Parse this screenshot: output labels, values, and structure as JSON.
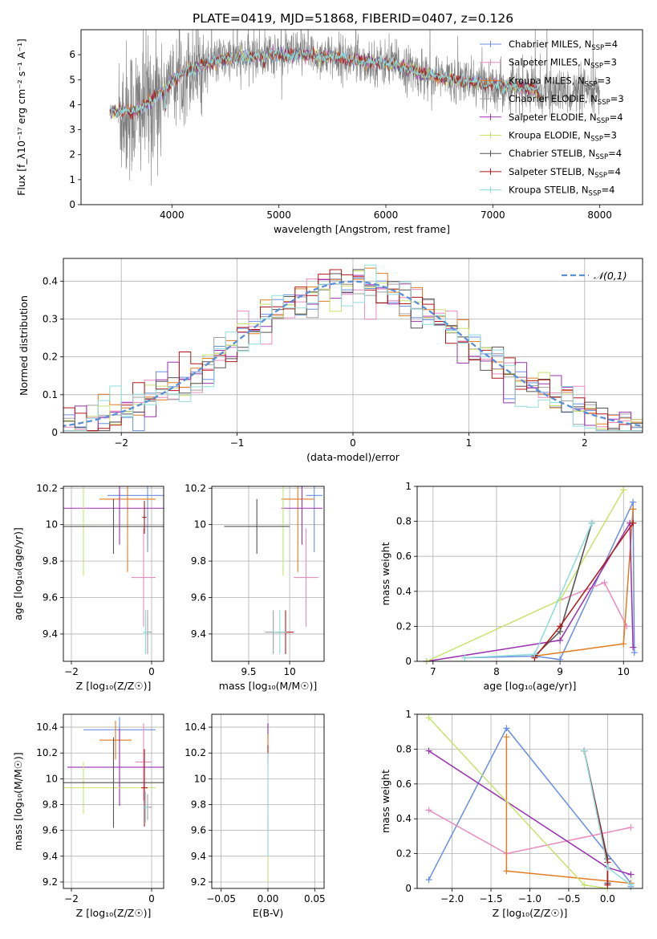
{
  "figure_title": "PLATE=0419, MJD=51868, FIBERID=0407, z=0.126",
  "models": [
    {
      "name": "Chabrier MILES",
      "nssp": "4",
      "color": "#6a8fe0"
    },
    {
      "name": "Salpeter MILES",
      "nssp": "3",
      "color": "#e88bbf"
    },
    {
      "name": "Kroupa MILES",
      "nssp": "3",
      "color": "#e07c22"
    },
    {
      "name": "Chabrier ELODIE",
      "nssp": "3",
      "color": "#a0a0a0"
    },
    {
      "name": "Salpeter ELODIE",
      "nssp": "4",
      "color": "#9b30b0"
    },
    {
      "name": "Kroupa ELODIE",
      "nssp": "3",
      "color": "#c7e36a"
    },
    {
      "name": "Chabrier STELIB",
      "nssp": "4",
      "color": "#555555"
    },
    {
      "name": "Salpeter STELIB",
      "nssp": "4",
      "color": "#b01818"
    },
    {
      "name": "Kroupa STELIB",
      "nssp": "4",
      "color": "#8fdcdc"
    }
  ],
  "chart_data": [
    {
      "id": "spectrum",
      "type": "line",
      "xlabel": "wavelength [Angstrom, rest frame]",
      "ylabel": "Flux [f_λ10⁻¹⁷ erg cm⁻² s⁻¹ A⁻¹]",
      "xlim": [
        3150,
        8400
      ],
      "ylim": [
        0,
        7
      ],
      "xticks": [
        4000,
        5000,
        6000,
        7000,
        8000
      ],
      "yticks": [
        0,
        1,
        2,
        3,
        4,
        5,
        6
      ],
      "legend": "top-right",
      "grid": false,
      "continuum": {
        "x": [
          3400,
          3500,
          3700,
          3900,
          4100,
          4300,
          4500,
          4700,
          4900,
          5100,
          5300,
          5500,
          5700,
          5900,
          6100,
          6300,
          6500,
          6700,
          6900,
          7100,
          7300,
          7450
        ],
        "y": [
          3.8,
          3.7,
          3.8,
          4.5,
          5.3,
          5.6,
          5.85,
          5.9,
          6.0,
          6.0,
          6.0,
          5.9,
          5.8,
          5.7,
          5.6,
          5.3,
          5.1,
          4.95,
          4.85,
          4.75,
          4.7,
          4.5
        ]
      },
      "data_range": [
        3500,
        8000
      ]
    },
    {
      "id": "residuals",
      "type": "bar",
      "xlabel": "(data-model)/error",
      "ylabel": "Normed distribution",
      "xlim": [
        -2.5,
        2.5
      ],
      "ylim": [
        0,
        0.46
      ],
      "xticks": [
        -2,
        -1,
        0,
        1,
        2
      ],
      "yticks": [
        0.0,
        0.1,
        0.2,
        0.3,
        0.4
      ],
      "grid": true,
      "legend": "top-right",
      "reference_curve": {
        "label": "𝒩(0,1)",
        "color": "#5b8fd6"
      },
      "bin_width": 0.1
    },
    {
      "id": "age_vs_Z",
      "type": "scatter",
      "xlabel": "Z [log₁₀(Z/Z☉)]",
      "ylabel": "age  [log₁₀(age/yr)]",
      "xlim": [
        -2.2,
        0.3
      ],
      "ylim": [
        9.25,
        10.21
      ],
      "xticks": [
        -2,
        0
      ],
      "yticks": [
        9.4,
        9.6,
        9.8,
        10.0,
        10.2
      ],
      "grid": true,
      "errorbars": [
        {
          "m": 0,
          "x": -0.1,
          "xe": 1.0,
          "y": 10.16,
          "ye": 0.31
        },
        {
          "m": 1,
          "x": -0.2,
          "xe": 0.3,
          "y": 9.71,
          "ye": 0.27
        },
        {
          "m": 2,
          "x": -0.6,
          "xe": 0.7,
          "y": 10.14,
          "ye": 0.4
        },
        {
          "m": 3,
          "x": -0.1,
          "xe": 0.1,
          "y": 9.41,
          "ye": 0.12
        },
        {
          "m": 4,
          "x": -0.8,
          "xe": 1.4,
          "y": 10.09,
          "ye": 0.2
        },
        {
          "m": 5,
          "x": -1.7,
          "xe": 0.4,
          "y": 9.99,
          "ye": 0.27
        },
        {
          "m": 6,
          "x": -0.95,
          "xe": 2.0,
          "y": 9.99,
          "ye": 0.15
        },
        {
          "m": 7,
          "x": -0.18,
          "xe": 0.05,
          "y": 10.04,
          "ye": 0.09
        },
        {
          "m": 8,
          "x": -0.15,
          "xe": 0.06,
          "y": 9.41,
          "ye": 0.12
        }
      ]
    },
    {
      "id": "age_vs_mass",
      "type": "scatter",
      "xlabel": "mass [log₁₀(M/M☉)]",
      "ylabel": "",
      "xlim": [
        9.05,
        10.42
      ],
      "ylim": [
        9.25,
        10.21
      ],
      "xticks": [
        9.5,
        10.0
      ],
      "yticks": [
        9.4,
        9.6,
        9.8,
        10.0,
        10.2
      ],
      "grid": true,
      "errorbars": [
        {
          "m": 0,
          "x": 10.3,
          "xe": 0.1,
          "y": 10.16,
          "ye": 0.31
        },
        {
          "m": 1,
          "x": 10.2,
          "xe": 0.15,
          "y": 9.71,
          "ye": 0.27
        },
        {
          "m": 2,
          "x": 10.1,
          "xe": 0.2,
          "y": 10.14,
          "ye": 0.4
        },
        {
          "m": 3,
          "x": 9.8,
          "xe": 0.1,
          "y": 9.41,
          "ye": 0.12
        },
        {
          "m": 4,
          "x": 10.15,
          "xe": 0.25,
          "y": 10.09,
          "ye": 0.2
        },
        {
          "m": 5,
          "x": 9.92,
          "xe": 0.05,
          "y": 9.99,
          "ye": 0.27
        },
        {
          "m": 6,
          "x": 9.6,
          "xe": 0.4,
          "y": 9.99,
          "ye": 0.15
        },
        {
          "m": 7,
          "x": 9.95,
          "xe": 0.1,
          "y": 9.41,
          "ye": 0.12
        },
        {
          "m": 8,
          "x": 9.88,
          "xe": 0.08,
          "y": 9.41,
          "ye": 0.12
        }
      ]
    },
    {
      "id": "weight_vs_age",
      "type": "line",
      "xlabel": "age  [log₁₀(age/yr)]",
      "ylabel": "mass weight",
      "xlim": [
        6.75,
        10.3
      ],
      "ylim": [
        0,
        1
      ],
      "xticks": [
        7,
        8,
        9,
        10
      ],
      "yticks": [
        0.0,
        0.2,
        0.4,
        0.6,
        0.8,
        1.0
      ],
      "grid": true,
      "series": [
        {
          "m": 0,
          "x": [
            7.5,
            8.6,
            9.0,
            10.15,
            10.17
          ],
          "y": [
            0.02,
            0.03,
            0.01,
            0.91,
            0.05
          ]
        },
        {
          "m": 1,
          "x": [
            9.0,
            9.7,
            10.05
          ],
          "y": [
            0.35,
            0.45,
            0.2
          ]
        },
        {
          "m": 2,
          "x": [
            8.6,
            10.0,
            10.15
          ],
          "y": [
            0.03,
            0.1,
            0.87
          ]
        },
        {
          "m": 3,
          "x": [
            8.6,
            9.0,
            9.5
          ],
          "y": [
            0.03,
            0.17,
            0.79
          ]
        },
        {
          "m": 4,
          "x": [
            6.9,
            9.0,
            10.1,
            10.15
          ],
          "y": [
            0.0,
            0.12,
            0.79,
            0.08
          ]
        },
        {
          "m": 5,
          "x": [
            6.9,
            9.0,
            10.0
          ],
          "y": [
            0.0,
            0.35,
            0.98
          ]
        },
        {
          "m": 6,
          "x": [
            8.6,
            9.0,
            9.5
          ],
          "y": [
            0.03,
            0.17,
            0.79
          ]
        },
        {
          "m": 7,
          "x": [
            8.6,
            9.0,
            10.15
          ],
          "y": [
            0.02,
            0.2,
            0.79
          ]
        },
        {
          "m": 8,
          "x": [
            7.5,
            8.6,
            9.5
          ],
          "y": [
            0.02,
            0.04,
            0.79
          ]
        }
      ]
    },
    {
      "id": "mass_vs_Z",
      "type": "scatter",
      "xlabel": "Z [log₁₀(Z/Z☉)]",
      "ylabel": "mass [log₁₀(M/M☉)]",
      "xlim": [
        -2.2,
        0.3
      ],
      "ylim": [
        9.15,
        10.5
      ],
      "xticks": [
        -2,
        0
      ],
      "yticks": [
        9.2,
        9.4,
        9.6,
        9.8,
        10.0,
        10.2,
        10.4
      ],
      "grid": true,
      "errorbars": [
        {
          "m": 0,
          "x": -0.8,
          "xe": 0.9,
          "y": 10.38,
          "ye": 0.1
        },
        {
          "m": 1,
          "x": -0.2,
          "xe": 0.2,
          "y": 10.13,
          "ye": 0.3
        },
        {
          "m": 2,
          "x": -0.9,
          "xe": 0.4,
          "y": 10.3,
          "ye": 0.15
        },
        {
          "m": 3,
          "x": -0.1,
          "xe": 0.1,
          "y": 9.78,
          "ye": 0.1
        },
        {
          "m": 4,
          "x": -0.8,
          "xe": 1.3,
          "y": 10.09,
          "ye": 0.3
        },
        {
          "m": 5,
          "x": -1.7,
          "xe": 1.8,
          "y": 9.93,
          "ye": 0.2
        },
        {
          "m": 6,
          "x": -0.95,
          "xe": 2.0,
          "y": 9.97,
          "ye": 0.35
        },
        {
          "m": 7,
          "x": -0.18,
          "xe": 0.08,
          "y": 9.93,
          "ye": 0.3
        },
        {
          "m": 8,
          "x": -0.15,
          "xe": 0.06,
          "y": 9.78,
          "ye": 0.12
        }
      ]
    },
    {
      "id": "mass_vs_EBV",
      "type": "scatter",
      "xlabel": "E(B-V)",
      "ylabel": "",
      "xlim": [
        -0.06,
        0.06
      ],
      "ylim": [
        9.15,
        10.5
      ],
      "xticks": [
        -0.05,
        0.0,
        0.05
      ],
      "xticklabels": [
        "−0.05",
        "0.00",
        "0.05"
      ],
      "yticks": [
        9.2,
        9.4,
        9.6,
        9.8,
        10.0,
        10.2,
        10.4
      ],
      "grid": true,
      "errorbars": [
        {
          "m": 0,
          "x": 0,
          "xe": 0,
          "y": 10.38,
          "ye": 0.05
        },
        {
          "m": 4,
          "x": 0,
          "xe": 0,
          "y": 10.35,
          "ye": 0.08
        },
        {
          "m": 2,
          "x": 0,
          "xe": 0,
          "y": 10.25,
          "ye": 0.1
        },
        {
          "m": 7,
          "x": 0,
          "xe": 0,
          "y": 10.18,
          "ye": 0.08
        },
        {
          "m": 6,
          "x": 0,
          "xe": 0,
          "y": 9.65,
          "ye": 0.05
        },
        {
          "m": 5,
          "x": 0,
          "xe": 0,
          "y": 9.6,
          "ye": 0.4
        },
        {
          "m": 8,
          "x": 0,
          "xe": 0,
          "y": 9.8,
          "ye": 0.4
        }
      ]
    },
    {
      "id": "weight_vs_Z",
      "type": "line",
      "xlabel": "Z [log₁₀(Z/Z☉)]",
      "ylabel": "mass weight",
      "xlim": [
        -2.45,
        0.45
      ],
      "ylim": [
        0,
        1
      ],
      "xticks": [
        -2.0,
        -1.5,
        -1.0,
        -0.5,
        0.0
      ],
      "xticklabels": [
        "−2.0",
        "−1.5",
        "−1.0",
        "−0.5",
        "0.0"
      ],
      "yticks": [
        0.0,
        0.2,
        0.4,
        0.6,
        0.8,
        1.0
      ],
      "grid": true,
      "series": [
        {
          "m": 0,
          "x": [
            -2.3,
            -1.3,
            0.3,
            0.3
          ],
          "y": [
            0.05,
            0.92,
            0.03,
            0.01
          ]
        },
        {
          "m": 1,
          "x": [
            -2.3,
            -1.3,
            0.3
          ],
          "y": [
            0.45,
            0.2,
            0.35
          ]
        },
        {
          "m": 2,
          "x": [
            -1.3,
            -1.3,
            0.3
          ],
          "y": [
            0.87,
            0.1,
            0.03
          ]
        },
        {
          "m": 3,
          "x": [
            -0.3,
            0.0,
            0.0
          ],
          "y": [
            0.79,
            0.17,
            0.03
          ]
        },
        {
          "m": 4,
          "x": [
            -2.3,
            0.0,
            0.3
          ],
          "y": [
            0.79,
            0.12,
            0.08
          ]
        },
        {
          "m": 5,
          "x": [
            -2.3,
            -0.3,
            0.0
          ],
          "y": [
            0.98,
            0.02,
            0.0
          ]
        },
        {
          "m": 6,
          "x": [
            -0.3,
            0.0,
            0.0
          ],
          "y": [
            0.79,
            0.17,
            0.03
          ]
        },
        {
          "m": 7,
          "x": [
            -0.3,
            0.0,
            0.0
          ],
          "y": [
            0.79,
            0.15,
            0.02
          ]
        },
        {
          "m": 8,
          "x": [
            -0.3,
            0.0,
            0.3
          ],
          "y": [
            0.79,
            0.12,
            0.02
          ]
        }
      ]
    }
  ]
}
